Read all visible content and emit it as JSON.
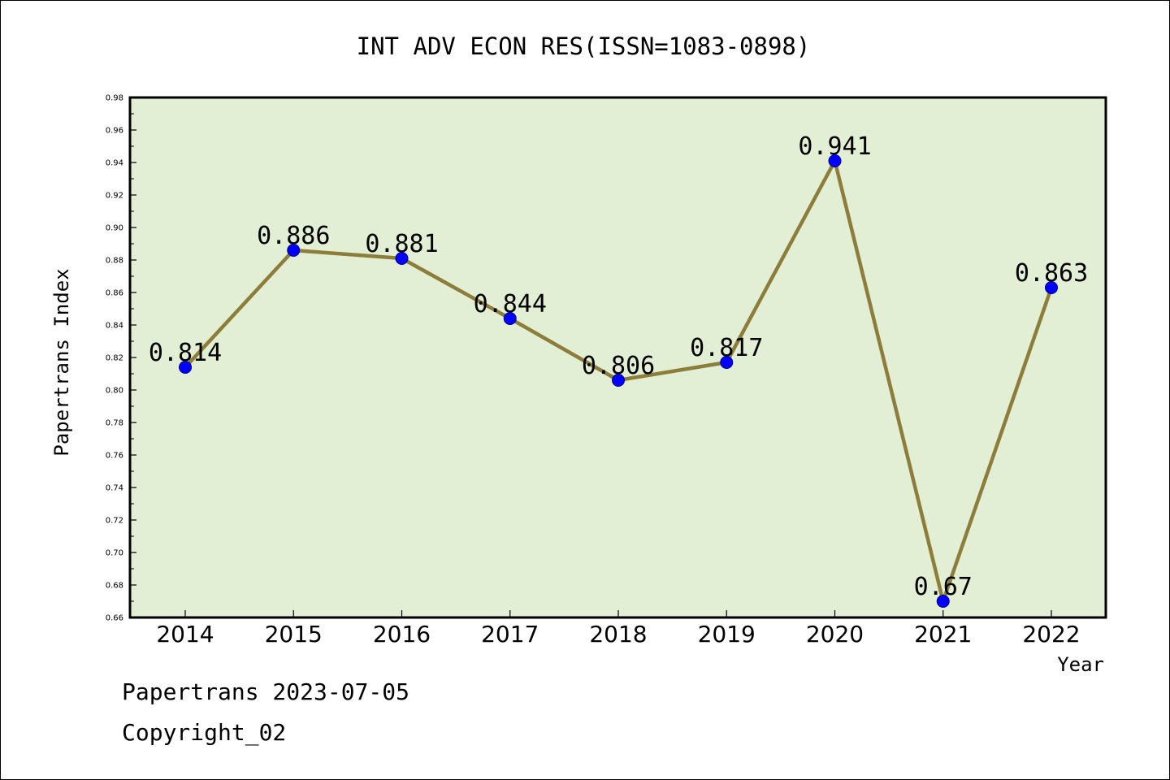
{
  "chart_data": {
    "type": "line",
    "title": "INT ADV ECON RES(ISSN=1083-0898)",
    "xlabel": "Year",
    "ylabel": "Papertrans Index",
    "categories": [
      "2014",
      "2015",
      "2016",
      "2017",
      "2018",
      "2019",
      "2020",
      "2021",
      "2022"
    ],
    "series": [
      {
        "values": [
          0.814,
          0.886,
          0.881,
          0.844,
          0.806,
          0.817,
          0.941,
          0.67,
          0.863
        ],
        "labels": [
          "0.814",
          "0.886",
          "0.881",
          "0.844",
          "0.806",
          "0.817",
          "0.941",
          "0.67",
          "0.863"
        ]
      }
    ],
    "ylim": [
      0.66,
      0.98
    ],
    "yticks": [
      "0.66",
      "0.68",
      "0.70",
      "0.72",
      "0.74",
      "0.76",
      "0.78",
      "0.80",
      "0.82",
      "0.84",
      "0.86",
      "0.88",
      "0.90",
      "0.92",
      "0.94",
      "0.96",
      "0.98"
    ],
    "grid": false,
    "legend": "none",
    "colors": {
      "plot_background": "#e2efd5",
      "line": "#8c7d3a",
      "marker": "#0000ff"
    }
  },
  "footer": {
    "line1": "Papertrans 2023-07-05",
    "line2": "Copyright_02"
  }
}
